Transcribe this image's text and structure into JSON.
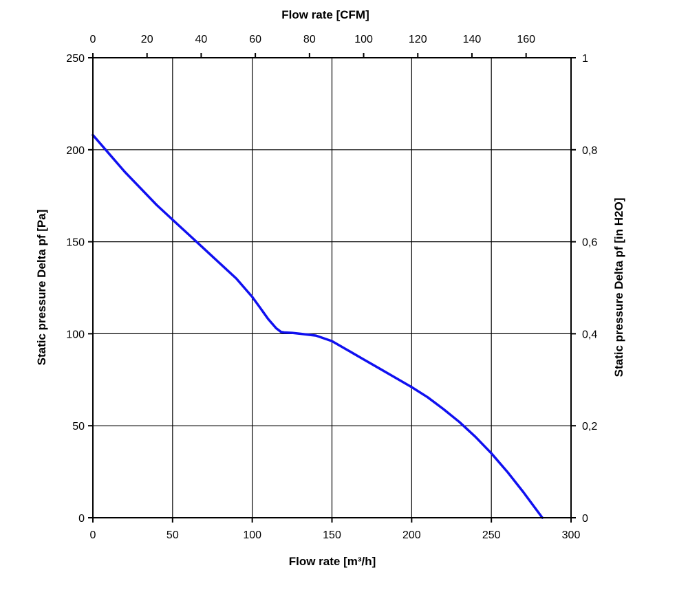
{
  "chart_data": {
    "type": "line",
    "title": "",
    "xlabel": "Flow rate [m³/h]",
    "ylabel": "Static pressure Delta pf [Pa]",
    "x2label": "Flow rate [CFM]",
    "y2label": "Static pressure Delta pf [in H2O]",
    "xlim": [
      0,
      300
    ],
    "ylim": [
      0,
      250
    ],
    "x2lim": [
      0,
      176.6
    ],
    "y2lim": [
      0,
      1.0
    ],
    "x_ticks": [
      "0",
      "50",
      "100",
      "150",
      "200",
      "250",
      "300"
    ],
    "y_ticks": [
      "0",
      "50",
      "100",
      "150",
      "200",
      "250"
    ],
    "x2_ticks": [
      "0",
      "20",
      "40",
      "60",
      "80",
      "100",
      "120",
      "140",
      "160"
    ],
    "y2_ticks": [
      "0",
      "0,2",
      "0,4",
      "0,6",
      "0,8",
      "1"
    ],
    "grid": true,
    "series": [
      {
        "color": "#1010f0",
        "x": [
          0,
          10,
          20,
          30,
          40,
          50,
          60,
          70,
          80,
          90,
          100,
          105,
          110,
          115,
          118,
          120,
          125,
          130,
          140,
          150,
          160,
          170,
          180,
          190,
          200,
          210,
          220,
          230,
          240,
          250,
          260,
          270,
          282
        ],
        "y": [
          208,
          198,
          188,
          179,
          170,
          162,
          154,
          146,
          138,
          130,
          120,
          114,
          108,
          103,
          101,
          100.7,
          100.5,
          100,
          99,
          96,
          91,
          86,
          81,
          76,
          71,
          65.5,
          59,
          52,
          44,
          35,
          25,
          14,
          0
        ]
      }
    ]
  }
}
